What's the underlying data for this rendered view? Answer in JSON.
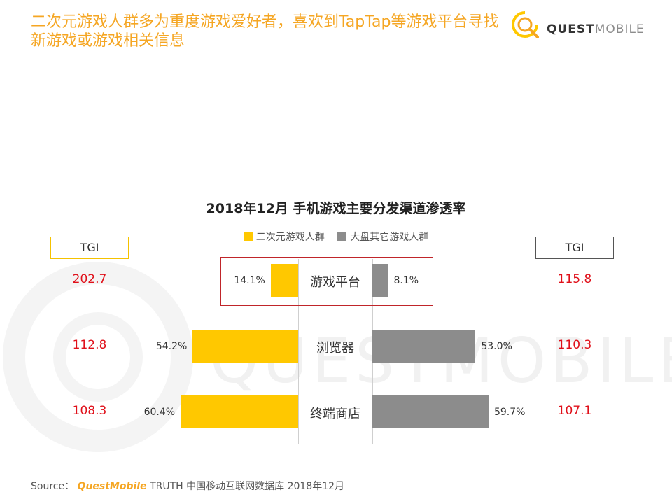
{
  "header": {
    "headline": "二次元游戏人群多为重度游戏爱好者，喜欢到TapTap等游戏平台寻找新游戏或游戏相关信息"
  },
  "logo": {
    "text_bold": "QUEST",
    "text_light": "MOBILE",
    "icon": "questmobile-logo-icon"
  },
  "watermark": {
    "text": "QUESTMOBILE"
  },
  "chart_data": {
    "type": "bar",
    "title": "2018年12月 手机游戏主要分发渠道渗透率",
    "categories": [
      "游戏平台",
      "浏览器",
      "终端商店"
    ],
    "series": [
      {
        "name": "二次元游戏人群",
        "values": [
          14.1,
          54.2,
          60.4
        ],
        "labels": [
          "14.1%",
          "54.2%",
          "60.4%"
        ],
        "color": "#ffc800"
      },
      {
        "name": "大盘其它游戏人群",
        "values": [
          8.1,
          53.0,
          59.7
        ],
        "labels": [
          "8.1%",
          "53.0%",
          "59.7%"
        ],
        "color": "#8c8c8c"
      }
    ],
    "tgi_header": "TGI",
    "tgi_left": [
      "202.7",
      "112.8",
      "108.3"
    ],
    "tgi_right": [
      "115.8",
      "110.3",
      "107.1"
    ],
    "highlighted_category": "游戏平台",
    "orientation": "horizontal-butterfly"
  },
  "footer": {
    "label": "Source：",
    "brand": "QuestMobile",
    "text": "TRUTH 中国移动互联网数据库 2018年12月"
  }
}
